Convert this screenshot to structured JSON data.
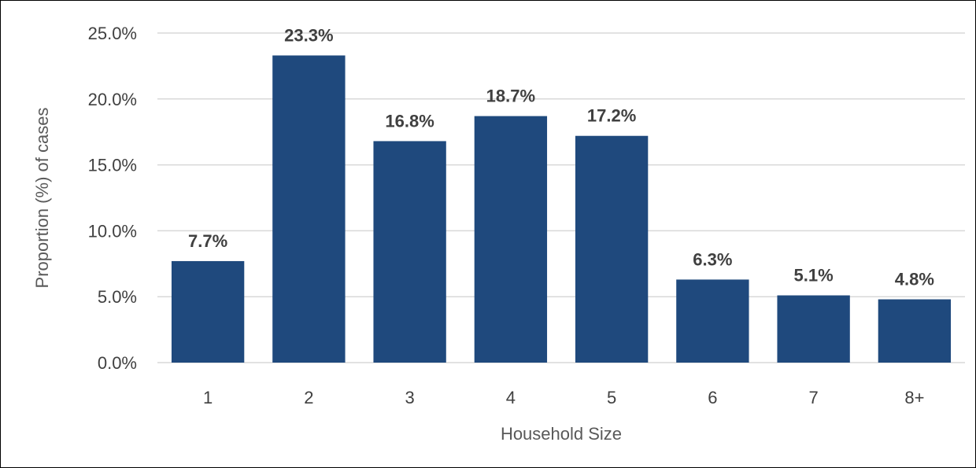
{
  "chart_data": {
    "type": "bar",
    "categories": [
      "1",
      "2",
      "3",
      "4",
      "5",
      "6",
      "7",
      "8+"
    ],
    "values": [
      7.7,
      23.3,
      16.8,
      18.7,
      17.2,
      6.3,
      5.1,
      4.8
    ],
    "data_labels": [
      "7.7%",
      "23.3%",
      "16.8%",
      "18.7%",
      "17.2%",
      "6.3%",
      "5.1%",
      "4.8%"
    ],
    "title": "",
    "xlabel": "Household Size",
    "ylabel": "Proportion (%) of cases",
    "ylim": [
      0,
      25
    ],
    "yticks": [
      0,
      5,
      10,
      15,
      20,
      25
    ],
    "ytick_labels": [
      "0.0%",
      "5.0%",
      "10.0%",
      "15.0%",
      "20.0%",
      "25.0%"
    ],
    "grid": "horizontal",
    "legend": "none",
    "colors": {
      "bar": "#1F497D",
      "grid": "#D9D9D9",
      "axis": "#D9D9D9"
    }
  }
}
